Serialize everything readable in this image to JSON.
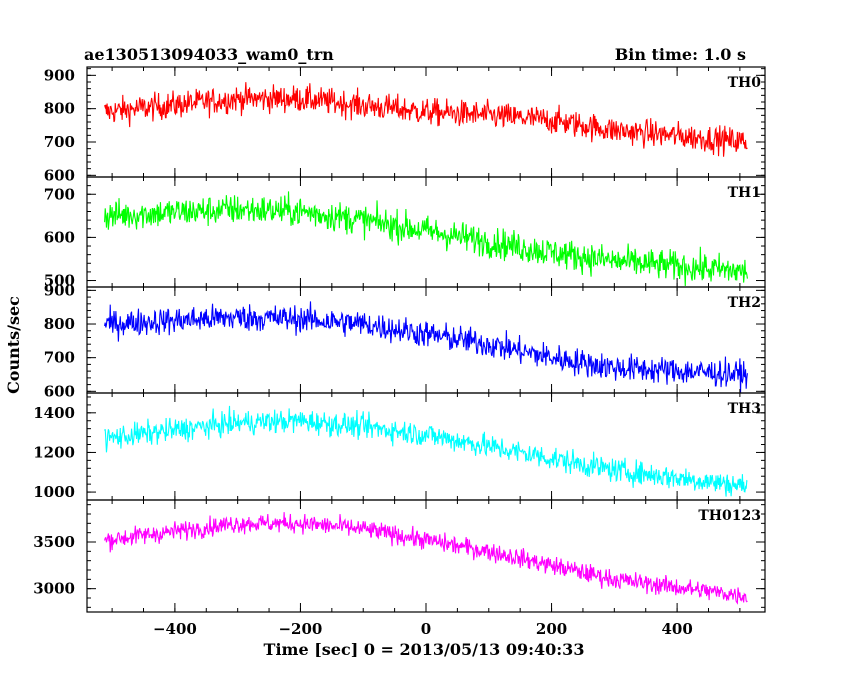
{
  "header": {
    "title": "ae130513094033_wam0_trn",
    "bin_time": "Bin time: 1.0 s"
  },
  "axes": {
    "xlabel": "Time [sec] 0 = 2013/05/13 09:40:33",
    "ylabel": "Counts/sec"
  },
  "chart_data": {
    "type": "line",
    "title": "ae130513094033_wam0_trn",
    "subtitle": "Bin time: 1.0 s",
    "xlabel": "Time [sec] 0 = 2013/05/13 09:40:33",
    "ylabel": "Counts/sec",
    "xlim": [
      -540,
      540
    ],
    "x_ticks": [
      -400,
      -200,
      0,
      200,
      400
    ],
    "x_tick_labels": [
      "−400",
      "−200",
      "0",
      "200",
      "400"
    ],
    "x_data_range": [
      -512,
      512
    ],
    "panels": [
      {
        "name": "TH0",
        "color": "#ff0000",
        "ylim": [
          595,
          925
        ],
        "y_ticks": [
          600,
          700,
          800,
          900
        ],
        "y_tick_labels": [
          "600",
          "700",
          "800",
          "900"
        ],
        "trend": {
          "x": [
            -512,
            -300,
            -200,
            -100,
            0,
            100,
            200,
            300,
            512
          ],
          "y": [
            790,
            830,
            830,
            810,
            790,
            780,
            765,
            735,
            700
          ]
        },
        "noise_amplitude": 40
      },
      {
        "name": "TH1",
        "color": "#00ff00",
        "ylim": [
          485,
          740
        ],
        "y_ticks": [
          500,
          600,
          700
        ],
        "y_tick_labels": [
          "500",
          "600",
          "700"
        ],
        "trend": {
          "x": [
            -512,
            -300,
            -200,
            -100,
            0,
            100,
            200,
            300,
            512
          ],
          "y": [
            650,
            665,
            660,
            640,
            615,
            590,
            565,
            545,
            520
          ]
        },
        "noise_amplitude": 35
      },
      {
        "name": "TH2",
        "color": "#0000ff",
        "ylim": [
          595,
          910
        ],
        "y_ticks": [
          600,
          700,
          800,
          900
        ],
        "y_tick_labels": [
          "600",
          "700",
          "800",
          "900"
        ],
        "trend": {
          "x": [
            -512,
            -300,
            -200,
            -100,
            0,
            100,
            200,
            300,
            512
          ],
          "y": [
            800,
            820,
            815,
            800,
            770,
            740,
            700,
            670,
            650
          ]
        },
        "noise_amplitude": 40
      },
      {
        "name": "TH3",
        "color": "#00ffff",
        "ylim": [
          960,
          1500
        ],
        "y_ticks": [
          1000,
          1200,
          1400
        ],
        "y_tick_labels": [
          "1000",
          "1200",
          "1400"
        ],
        "trend": {
          "x": [
            -512,
            -300,
            -200,
            -100,
            0,
            100,
            200,
            300,
            512
          ],
          "y": [
            1270,
            1350,
            1360,
            1330,
            1290,
            1230,
            1170,
            1110,
            1030
          ]
        },
        "noise_amplitude": 60
      },
      {
        "name": "TH0123",
        "color": "#ff00ff",
        "ylim": [
          2750,
          3950
        ],
        "y_ticks": [
          3000,
          3500
        ],
        "y_tick_labels": [
          "3000",
          "3500"
        ],
        "trend": {
          "x": [
            -512,
            -300,
            -200,
            -100,
            0,
            100,
            200,
            300,
            512
          ],
          "y": [
            3520,
            3700,
            3700,
            3640,
            3520,
            3400,
            3250,
            3100,
            2920
          ]
        },
        "noise_amplitude": 100
      }
    ]
  }
}
